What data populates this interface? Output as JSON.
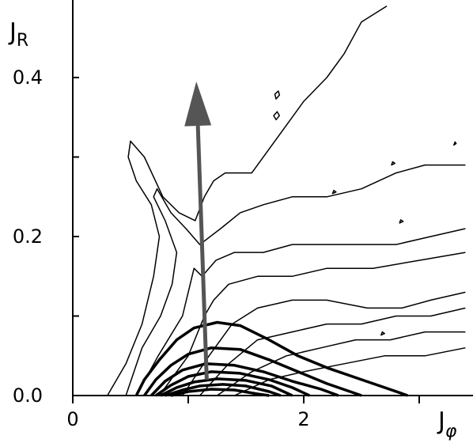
{
  "chart_data": {
    "type": "contour",
    "xlabel": "J",
    "xlabel_sub": "φ",
    "ylabel": "J",
    "ylabel_sub": "R",
    "xlim": [
      0,
      3.4
    ],
    "ylim": [
      0,
      0.49
    ],
    "x_ticks": [
      {
        "value": 0,
        "label": "0"
      },
      {
        "value": 1,
        "label": ""
      },
      {
        "value": 2,
        "label": "2"
      },
      {
        "value": 3,
        "label": ""
      }
    ],
    "y_ticks": [
      {
        "value": 0.0,
        "label": "0.0"
      },
      {
        "value": 0.1,
        "label": ""
      },
      {
        "value": 0.2,
        "label": "0.2"
      },
      {
        "value": 0.3,
        "label": ""
      },
      {
        "value": 0.4,
        "label": "0.4"
      }
    ],
    "arrow": {
      "from": [
        1.16,
        0.02
      ],
      "to": [
        1.07,
        0.395
      ],
      "color": "#555555"
    },
    "series_thin": [
      {
        "points": [
          [
            0.3,
            0.0
          ],
          [
            0.46,
            0.04
          ],
          [
            0.6,
            0.09
          ],
          [
            0.7,
            0.15
          ],
          [
            0.75,
            0.2
          ],
          [
            0.68,
            0.24
          ],
          [
            0.55,
            0.27
          ],
          [
            0.48,
            0.3
          ],
          [
            0.5,
            0.32
          ],
          [
            0.62,
            0.3
          ],
          [
            0.78,
            0.25
          ],
          [
            0.92,
            0.23
          ],
          [
            1.06,
            0.22
          ],
          [
            1.14,
            0.25
          ],
          [
            1.22,
            0.27
          ],
          [
            1.32,
            0.28
          ],
          [
            1.55,
            0.28
          ],
          [
            1.7,
            0.31
          ],
          [
            1.85,
            0.34
          ],
          [
            2.0,
            0.37
          ],
          [
            2.2,
            0.4
          ],
          [
            2.35,
            0.43
          ],
          [
            2.5,
            0.47
          ],
          [
            2.72,
            0.49
          ]
        ]
      },
      {
        "points": [
          [
            0.46,
            0.0
          ],
          [
            0.6,
            0.06
          ],
          [
            0.76,
            0.1
          ],
          [
            0.86,
            0.14
          ],
          [
            0.9,
            0.18
          ],
          [
            0.8,
            0.22
          ],
          [
            0.7,
            0.25
          ],
          [
            0.73,
            0.26
          ],
          [
            0.85,
            0.23
          ],
          [
            0.98,
            0.21
          ],
          [
            1.1,
            0.19
          ],
          [
            1.28,
            0.21
          ],
          [
            1.45,
            0.23
          ],
          [
            1.65,
            0.24
          ],
          [
            1.9,
            0.25
          ],
          [
            2.2,
            0.25
          ],
          [
            2.5,
            0.26
          ],
          [
            2.8,
            0.28
          ],
          [
            3.05,
            0.29
          ],
          [
            3.4,
            0.29
          ]
        ]
      },
      {
        "points": [
          [
            0.55,
            0.0
          ],
          [
            0.74,
            0.05
          ],
          [
            0.95,
            0.1
          ],
          [
            1.0,
            0.13
          ],
          [
            1.05,
            0.16
          ],
          [
            1.12,
            0.15
          ],
          [
            1.24,
            0.17
          ],
          [
            1.4,
            0.18
          ],
          [
            1.65,
            0.18
          ],
          [
            1.9,
            0.19
          ],
          [
            2.2,
            0.19
          ],
          [
            2.5,
            0.19
          ],
          [
            2.8,
            0.19
          ],
          [
            3.1,
            0.2
          ],
          [
            3.4,
            0.21
          ]
        ]
      },
      {
        "points": [
          [
            0.75,
            0.0
          ],
          [
            1.0,
            0.05
          ],
          [
            1.14,
            0.1
          ],
          [
            1.22,
            0.12
          ],
          [
            1.35,
            0.14
          ],
          [
            1.6,
            0.15
          ],
          [
            1.9,
            0.15
          ],
          [
            2.2,
            0.16
          ],
          [
            2.6,
            0.16
          ],
          [
            3.0,
            0.17
          ],
          [
            3.4,
            0.18
          ]
        ]
      },
      {
        "points": [
          [
            0.95,
            0.0
          ],
          [
            1.18,
            0.05
          ],
          [
            1.38,
            0.09
          ],
          [
            1.6,
            0.11
          ],
          [
            1.9,
            0.12
          ],
          [
            2.2,
            0.12
          ],
          [
            2.55,
            0.11
          ],
          [
            2.85,
            0.11
          ],
          [
            3.1,
            0.12
          ],
          [
            3.4,
            0.13
          ]
        ]
      },
      {
        "points": [
          [
            1.1,
            0.0
          ],
          [
            1.35,
            0.04
          ],
          [
            1.6,
            0.07
          ],
          [
            1.9,
            0.08
          ],
          [
            2.2,
            0.09
          ],
          [
            2.5,
            0.09
          ],
          [
            2.8,
            0.1
          ],
          [
            3.1,
            0.1
          ],
          [
            3.4,
            0.11
          ]
        ]
      },
      {
        "points": [
          [
            1.25,
            0.0
          ],
          [
            1.55,
            0.03
          ],
          [
            1.85,
            0.05
          ],
          [
            2.15,
            0.06
          ],
          [
            2.45,
            0.07
          ],
          [
            2.75,
            0.07
          ],
          [
            3.05,
            0.08
          ],
          [
            3.4,
            0.08
          ]
        ]
      },
      {
        "points": [
          [
            1.4,
            0.0
          ],
          [
            1.7,
            0.02
          ],
          [
            2.0,
            0.03
          ],
          [
            2.35,
            0.04
          ],
          [
            2.7,
            0.05
          ],
          [
            3.05,
            0.05
          ],
          [
            3.4,
            0.06
          ]
        ]
      }
    ],
    "series_thick": [
      {
        "points": [
          [
            0.55,
            0.0
          ],
          [
            0.62,
            0.02
          ],
          [
            0.75,
            0.045
          ],
          [
            0.9,
            0.07
          ],
          [
            1.05,
            0.085
          ],
          [
            1.25,
            0.092
          ],
          [
            1.45,
            0.088
          ],
          [
            1.7,
            0.07
          ],
          [
            1.95,
            0.05
          ],
          [
            2.2,
            0.035
          ],
          [
            2.5,
            0.02
          ],
          [
            2.7,
            0.01
          ],
          [
            2.9,
            0.0
          ]
        ]
      },
      {
        "points": [
          [
            0.62,
            0.0
          ],
          [
            0.72,
            0.02
          ],
          [
            0.85,
            0.038
          ],
          [
            1.0,
            0.052
          ],
          [
            1.2,
            0.06
          ],
          [
            1.45,
            0.058
          ],
          [
            1.7,
            0.045
          ],
          [
            1.95,
            0.03
          ],
          [
            2.2,
            0.015
          ],
          [
            2.5,
            0.0
          ]
        ]
      },
      {
        "points": [
          [
            0.68,
            0.0
          ],
          [
            0.8,
            0.018
          ],
          [
            0.95,
            0.032
          ],
          [
            1.15,
            0.04
          ],
          [
            1.4,
            0.038
          ],
          [
            1.65,
            0.03
          ],
          [
            1.9,
            0.018
          ],
          [
            2.15,
            0.008
          ],
          [
            2.3,
            0.0
          ]
        ]
      },
      {
        "points": [
          [
            0.72,
            0.0
          ],
          [
            0.85,
            0.013
          ],
          [
            1.0,
            0.024
          ],
          [
            1.2,
            0.03
          ],
          [
            1.45,
            0.028
          ],
          [
            1.7,
            0.02
          ],
          [
            1.9,
            0.01
          ],
          [
            2.05,
            0.0
          ]
        ]
      },
      {
        "points": [
          [
            0.76,
            0.0
          ],
          [
            0.9,
            0.01
          ],
          [
            1.05,
            0.017
          ],
          [
            1.25,
            0.021
          ],
          [
            1.5,
            0.019
          ],
          [
            1.72,
            0.012
          ],
          [
            1.9,
            0.0
          ]
        ]
      },
      {
        "points": [
          [
            0.8,
            0.0
          ],
          [
            0.95,
            0.007
          ],
          [
            1.1,
            0.012
          ],
          [
            1.3,
            0.014
          ],
          [
            1.5,
            0.012
          ],
          [
            1.7,
            0.005
          ],
          [
            1.8,
            0.0
          ]
        ]
      },
      {
        "points": [
          [
            0.85,
            0.0
          ],
          [
            1.0,
            0.005
          ],
          [
            1.2,
            0.008
          ],
          [
            1.4,
            0.007
          ],
          [
            1.6,
            0.002
          ],
          [
            1.7,
            0.0
          ]
        ]
      }
    ],
    "islands": [
      {
        "points": [
          [
            1.76,
            0.373
          ],
          [
            1.79,
            0.378
          ],
          [
            1.78,
            0.383
          ],
          [
            1.75,
            0.379
          ],
          [
            1.76,
            0.373
          ]
        ]
      },
      {
        "points": [
          [
            1.76,
            0.347
          ],
          [
            1.79,
            0.352
          ],
          [
            1.77,
            0.357
          ],
          [
            1.74,
            0.352
          ],
          [
            1.76,
            0.347
          ]
        ]
      },
      {
        "points": [
          [
            3.3,
            0.315
          ],
          [
            3.32,
            0.317
          ],
          [
            3.31,
            0.319
          ],
          [
            3.3,
            0.315
          ]
        ]
      },
      {
        "points": [
          [
            2.76,
            0.29
          ],
          [
            2.79,
            0.292
          ],
          [
            2.77,
            0.294
          ],
          [
            2.76,
            0.29
          ]
        ]
      },
      {
        "points": [
          [
            2.25,
            0.254
          ],
          [
            2.28,
            0.256
          ],
          [
            2.26,
            0.258
          ],
          [
            2.25,
            0.254
          ]
        ]
      },
      {
        "points": [
          [
            2.83,
            0.217
          ],
          [
            2.86,
            0.219
          ],
          [
            2.84,
            0.221
          ],
          [
            2.83,
            0.217
          ]
        ]
      },
      {
        "points": [
          [
            2.67,
            0.076
          ],
          [
            2.7,
            0.078
          ],
          [
            2.68,
            0.08
          ],
          [
            2.67,
            0.076
          ]
        ]
      }
    ]
  }
}
